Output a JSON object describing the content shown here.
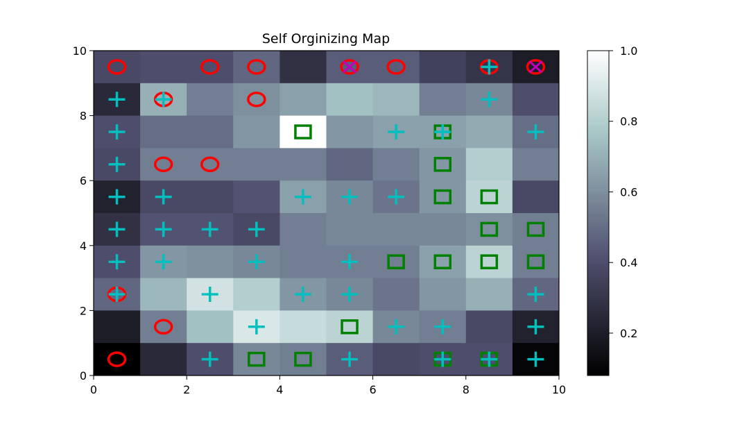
{
  "chart_data": {
    "type": "heatmap",
    "title": "Self Orginizing Map",
    "xlabel": "",
    "ylabel": "",
    "xlim": [
      0,
      10
    ],
    "ylim": [
      0,
      10
    ],
    "x_ticks": [
      "0",
      "2",
      "4",
      "6",
      "8",
      "10"
    ],
    "y_ticks": [
      "0",
      "2",
      "4",
      "6",
      "8",
      "10"
    ],
    "colormap": "bone",
    "colorbar": {
      "range": [
        0.08,
        1.0
      ],
      "ticks": [
        "0.2",
        "0.4",
        "0.6",
        "0.8",
        "1.0"
      ],
      "tick_values": [
        0.2,
        0.4,
        0.6,
        0.8,
        1.0
      ]
    },
    "grid_rows_top_to_bottom": [
      [
        0.38,
        0.4,
        0.4,
        0.48,
        0.28,
        0.45,
        0.45,
        0.35,
        0.3,
        0.2
      ],
      [
        0.25,
        0.7,
        0.55,
        0.6,
        0.65,
        0.75,
        0.72,
        0.55,
        0.58,
        0.4
      ],
      [
        0.4,
        0.5,
        0.5,
        0.62,
        1.0,
        0.62,
        0.65,
        0.65,
        0.68,
        0.5
      ],
      [
        0.38,
        0.55,
        0.55,
        0.55,
        0.55,
        0.48,
        0.55,
        0.62,
        0.8,
        0.55
      ],
      [
        0.22,
        0.38,
        0.38,
        0.42,
        0.65,
        0.58,
        0.52,
        0.62,
        0.82,
        0.38
      ],
      [
        0.28,
        0.42,
        0.42,
        0.38,
        0.55,
        0.58,
        0.58,
        0.58,
        0.6,
        0.55
      ],
      [
        0.4,
        0.62,
        0.6,
        0.58,
        0.55,
        0.55,
        0.55,
        0.65,
        0.82,
        0.55
      ],
      [
        0.48,
        0.72,
        0.88,
        0.8,
        0.62,
        0.58,
        0.52,
        0.62,
        0.7,
        0.48
      ],
      [
        0.2,
        0.55,
        0.75,
        0.9,
        0.85,
        0.82,
        0.58,
        0.55,
        0.38,
        0.22
      ],
      [
        0.08,
        0.25,
        0.4,
        0.58,
        0.55,
        0.45,
        0.38,
        0.4,
        0.4,
        0.1
      ]
    ],
    "marker_legend": {
      "o": "red circle",
      "+": "cyan plus",
      "s": "green square",
      "x": "magenta x"
    },
    "markers": [
      {
        "x": 0.5,
        "y": 9.5,
        "m": [
          "o"
        ]
      },
      {
        "x": 2.5,
        "y": 9.5,
        "m": [
          "o"
        ]
      },
      {
        "x": 3.5,
        "y": 9.5,
        "m": [
          "o"
        ]
      },
      {
        "x": 5.5,
        "y": 9.5,
        "m": [
          "o",
          "x"
        ]
      },
      {
        "x": 6.5,
        "y": 9.5,
        "m": [
          "o"
        ]
      },
      {
        "x": 8.5,
        "y": 9.5,
        "m": [
          "o",
          "+"
        ]
      },
      {
        "x": 9.5,
        "y": 9.5,
        "m": [
          "o",
          "x"
        ]
      },
      {
        "x": 0.5,
        "y": 8.5,
        "m": [
          "+"
        ]
      },
      {
        "x": 1.5,
        "y": 8.5,
        "m": [
          "o",
          "+"
        ]
      },
      {
        "x": 3.5,
        "y": 8.5,
        "m": [
          "o"
        ]
      },
      {
        "x": 8.5,
        "y": 8.5,
        "m": [
          "+"
        ]
      },
      {
        "x": 0.5,
        "y": 7.5,
        "m": [
          "+"
        ]
      },
      {
        "x": 4.5,
        "y": 7.5,
        "m": [
          "s"
        ]
      },
      {
        "x": 6.5,
        "y": 7.5,
        "m": [
          "+"
        ]
      },
      {
        "x": 7.5,
        "y": 7.5,
        "m": [
          "s",
          "+"
        ]
      },
      {
        "x": 9.5,
        "y": 7.5,
        "m": [
          "+"
        ]
      },
      {
        "x": 0.5,
        "y": 6.5,
        "m": [
          "+"
        ]
      },
      {
        "x": 1.5,
        "y": 6.5,
        "m": [
          "o"
        ]
      },
      {
        "x": 2.5,
        "y": 6.5,
        "m": [
          "o"
        ]
      },
      {
        "x": 7.5,
        "y": 6.5,
        "m": [
          "s"
        ]
      },
      {
        "x": 0.5,
        "y": 5.5,
        "m": [
          "+"
        ]
      },
      {
        "x": 1.5,
        "y": 5.5,
        "m": [
          "+"
        ]
      },
      {
        "x": 4.5,
        "y": 5.5,
        "m": [
          "+"
        ]
      },
      {
        "x": 5.5,
        "y": 5.5,
        "m": [
          "+"
        ]
      },
      {
        "x": 6.5,
        "y": 5.5,
        "m": [
          "+"
        ]
      },
      {
        "x": 7.5,
        "y": 5.5,
        "m": [
          "s"
        ]
      },
      {
        "x": 8.5,
        "y": 5.5,
        "m": [
          "s"
        ]
      },
      {
        "x": 0.5,
        "y": 4.5,
        "m": [
          "+"
        ]
      },
      {
        "x": 1.5,
        "y": 4.5,
        "m": [
          "+"
        ]
      },
      {
        "x": 2.5,
        "y": 4.5,
        "m": [
          "+"
        ]
      },
      {
        "x": 3.5,
        "y": 4.5,
        "m": [
          "+"
        ]
      },
      {
        "x": 8.5,
        "y": 4.5,
        "m": [
          "s"
        ]
      },
      {
        "x": 9.5,
        "y": 4.5,
        "m": [
          "s"
        ]
      },
      {
        "x": 0.5,
        "y": 3.5,
        "m": [
          "+"
        ]
      },
      {
        "x": 1.5,
        "y": 3.5,
        "m": [
          "+"
        ]
      },
      {
        "x": 3.5,
        "y": 3.5,
        "m": [
          "+"
        ]
      },
      {
        "x": 5.5,
        "y": 3.5,
        "m": [
          "+"
        ]
      },
      {
        "x": 6.5,
        "y": 3.5,
        "m": [
          "s"
        ]
      },
      {
        "x": 7.5,
        "y": 3.5,
        "m": [
          "s"
        ]
      },
      {
        "x": 8.5,
        "y": 3.5,
        "m": [
          "s"
        ]
      },
      {
        "x": 9.5,
        "y": 3.5,
        "m": [
          "s"
        ]
      },
      {
        "x": 0.5,
        "y": 2.5,
        "m": [
          "o",
          "+"
        ]
      },
      {
        "x": 2.5,
        "y": 2.5,
        "m": [
          "+"
        ]
      },
      {
        "x": 4.5,
        "y": 2.5,
        "m": [
          "+"
        ]
      },
      {
        "x": 5.5,
        "y": 2.5,
        "m": [
          "+"
        ]
      },
      {
        "x": 9.5,
        "y": 2.5,
        "m": [
          "+"
        ]
      },
      {
        "x": 1.5,
        "y": 1.5,
        "m": [
          "o"
        ]
      },
      {
        "x": 3.5,
        "y": 1.5,
        "m": [
          "+"
        ]
      },
      {
        "x": 5.5,
        "y": 1.5,
        "m": [
          "s"
        ]
      },
      {
        "x": 6.5,
        "y": 1.5,
        "m": [
          "+"
        ]
      },
      {
        "x": 7.5,
        "y": 1.5,
        "m": [
          "+"
        ]
      },
      {
        "x": 9.5,
        "y": 1.5,
        "m": [
          "+"
        ]
      },
      {
        "x": 0.5,
        "y": 0.5,
        "m": [
          "o"
        ]
      },
      {
        "x": 2.5,
        "y": 0.5,
        "m": [
          "+"
        ]
      },
      {
        "x": 3.5,
        "y": 0.5,
        "m": [
          "s"
        ]
      },
      {
        "x": 4.5,
        "y": 0.5,
        "m": [
          "s"
        ]
      },
      {
        "x": 5.5,
        "y": 0.5,
        "m": [
          "+"
        ]
      },
      {
        "x": 7.5,
        "y": 0.5,
        "m": [
          "s",
          "+"
        ]
      },
      {
        "x": 8.5,
        "y": 0.5,
        "m": [
          "s",
          "+"
        ]
      },
      {
        "x": 9.5,
        "y": 0.5,
        "m": [
          "+"
        ]
      }
    ]
  },
  "colors": {
    "circle": "#ff0000",
    "plus": "#00bfbf",
    "square": "#008000",
    "x": "#bf00bf"
  }
}
